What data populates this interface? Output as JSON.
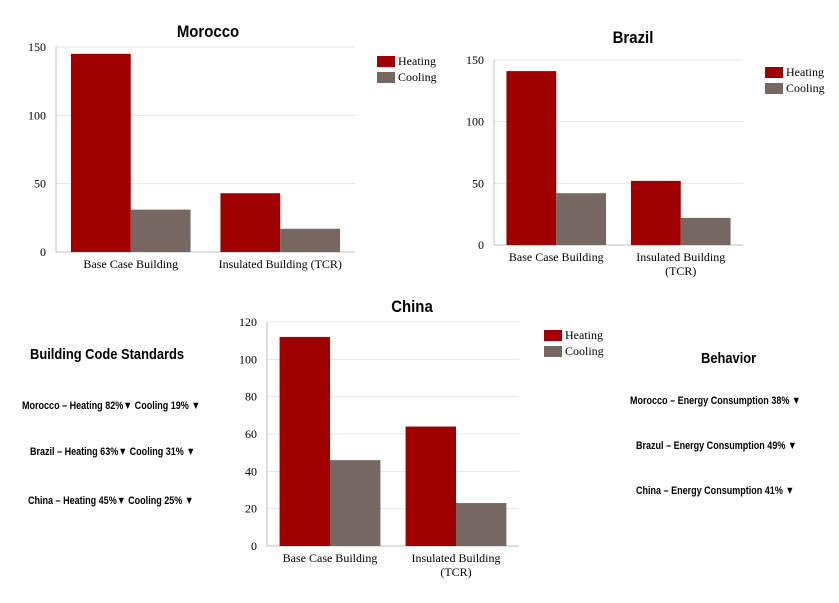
{
  "chart_data": [
    {
      "type": "bar",
      "title": "Morocco",
      "categories": [
        "Base Case Building",
        "Insulated Building (TCR)"
      ],
      "series": [
        {
          "name": "Heating",
          "values": [
            145,
            43
          ]
        },
        {
          "name": "Cooling",
          "values": [
            31,
            17
          ]
        }
      ],
      "ylim": [
        0,
        150
      ],
      "yticks": [
        "0",
        "50",
        "100",
        "150"
      ],
      "legend_position": "right",
      "grid": true
    },
    {
      "type": "bar",
      "title": "Brazil",
      "categories": [
        "Base Case Building",
        "Insulated Building (TCR)"
      ],
      "series": [
        {
          "name": "Heating",
          "values": [
            141,
            52
          ]
        },
        {
          "name": "Cooling",
          "values": [
            42,
            22
          ]
        }
      ],
      "ylim": [
        0,
        150
      ],
      "yticks": [
        "0",
        "50",
        "100",
        "150"
      ],
      "legend_position": "right",
      "grid": true
    },
    {
      "type": "bar",
      "title": "China",
      "categories": [
        "Base Case Building",
        "Insulated Building (TCR)"
      ],
      "series": [
        {
          "name": "Heating",
          "values": [
            112,
            64
          ]
        },
        {
          "name": "Cooling",
          "values": [
            46,
            23
          ]
        }
      ],
      "ylim": [
        0,
        120
      ],
      "yticks": [
        "0",
        "20",
        "40",
        "60",
        "80",
        "100",
        "120"
      ],
      "legend_position": "right",
      "grid": true
    }
  ],
  "colors": {
    "heating": "#a00000",
    "cooling": "#766760",
    "grid": "#e6e6e6",
    "axis": "#bfbfbf"
  },
  "building_code": {
    "title": "Building Code Standards",
    "lines": [
      "Morocco –  Heating 82%▼ Cooling 19% ▼",
      "Brazil –  Heating 63%▼ Cooling 31% ▼",
      "China –  Heating 45%▼ Cooling 25% ▼"
    ]
  },
  "behavior": {
    "title": "Behavior",
    "lines": [
      "Morocco –  Energy Consumption 38% ▼",
      "Brazul –  Energy Consumption 49% ▼",
      "China –  Energy Consumption 41% ▼"
    ]
  }
}
